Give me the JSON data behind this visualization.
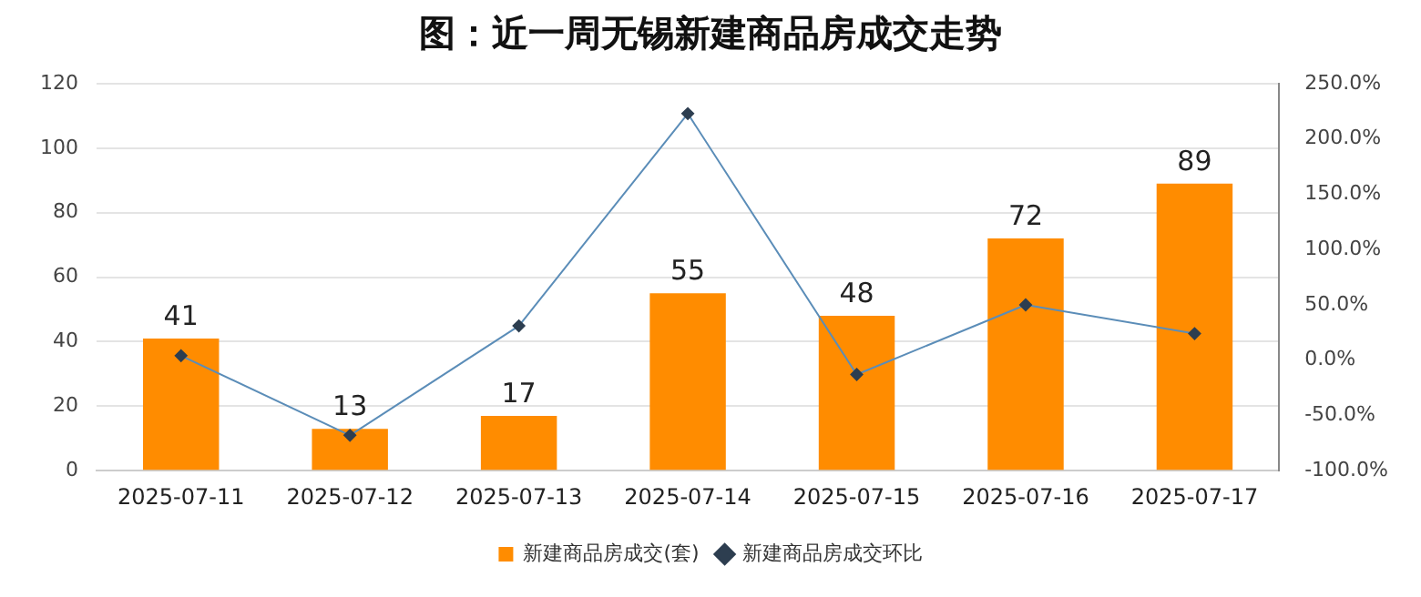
{
  "chart_data": {
    "type": "bar",
    "title": "图：近一周无锡新建商品房成交走势",
    "categories": [
      "2025-07-11",
      "2025-07-12",
      "2025-07-13",
      "2025-07-14",
      "2025-07-15",
      "2025-07-16",
      "2025-07-17"
    ],
    "series": [
      {
        "name": "新建商品房成交(套)",
        "color": "#ff8c00",
        "values": [
          41,
          13,
          17,
          55,
          48,
          72,
          89
        ],
        "value_labels": [
          "41",
          "13",
          "17",
          "55",
          "48",
          "72",
          "89"
        ]
      },
      {
        "name": "新建商品房成交环比",
        "type": "line",
        "axis": "y2",
        "color": "#5b8db8",
        "values": [
          4,
          -68,
          31,
          223,
          -13,
          50,
          24
        ]
      }
    ],
    "ylim": [
      0,
      120
    ],
    "yticks": [
      0,
      20,
      40,
      60,
      80,
      100,
      120
    ],
    "y2lim": [
      -100,
      250
    ],
    "y2ticks": [
      {
        "value": -100,
        "label": "-100.0%"
      },
      {
        "value": -50,
        "label": "-50.0%"
      },
      {
        "value": 0,
        "label": "0.0%"
      },
      {
        "value": 50,
        "label": "50.0%"
      },
      {
        "value": 100,
        "label": "100.0%"
      },
      {
        "value": 150,
        "label": "150.0%"
      },
      {
        "value": 200,
        "label": "200.0%"
      },
      {
        "value": 250,
        "label": "250.0%"
      }
    ],
    "grid": "y",
    "legend": "bottom",
    "marker": "diamond",
    "line_style": "solid"
  }
}
